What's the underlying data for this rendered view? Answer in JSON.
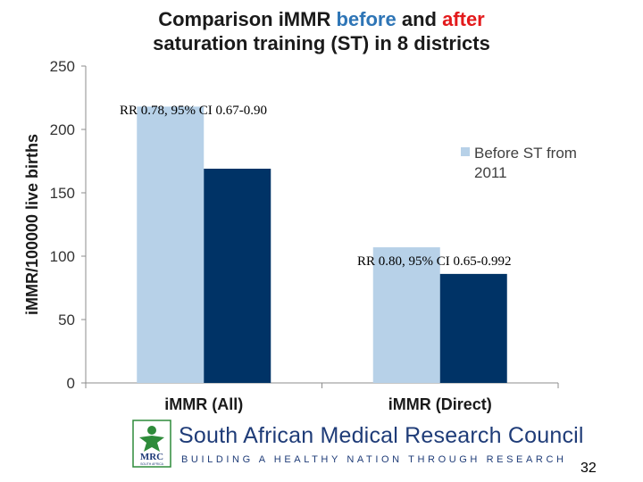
{
  "slide": {
    "title_part1": "Comparison iMMR ",
    "title_before": "before",
    "title_and": " and ",
    "title_after": "after",
    "title_line2": "saturation training (ST) in 8 districts",
    "page_number": "32"
  },
  "colors": {
    "before": "#b7d1e8",
    "after": "#003366",
    "title_blue": "#2e75b6",
    "title_red": "#e31a1c",
    "org_blue": "#1f3c78",
    "logo_green": "#2e8b3a"
  },
  "footer": {
    "org_name": "South African Medical Research Council",
    "tagline": "BUILDING A HEALTHY NATION THROUGH RESEARCH",
    "logo_text": "MRC",
    "logo_subtext": "SOUTH AFRICA"
  },
  "chart_data": {
    "type": "bar",
    "categories": [
      "iMMR (All)",
      "iMMR (Direct)"
    ],
    "series": [
      {
        "name": "Before ST from 2011",
        "values": [
          218,
          107
        ]
      },
      {
        "values": [
          169,
          86
        ]
      }
    ],
    "ylabel": "iMMR/100000 live births",
    "xlabel": "",
    "ylim": [
      0,
      250
    ],
    "yticks": [
      0,
      50,
      100,
      150,
      200,
      250
    ],
    "legend_position": "right",
    "gridlines": false,
    "annotations": [
      {
        "text": "RR 0.78, 95% CI 0.67-0.90",
        "category": "iMMR (All)"
      },
      {
        "text": "RR 0.80, 95% CI 0.65-0.992",
        "category": "iMMR (Direct)"
      }
    ]
  }
}
